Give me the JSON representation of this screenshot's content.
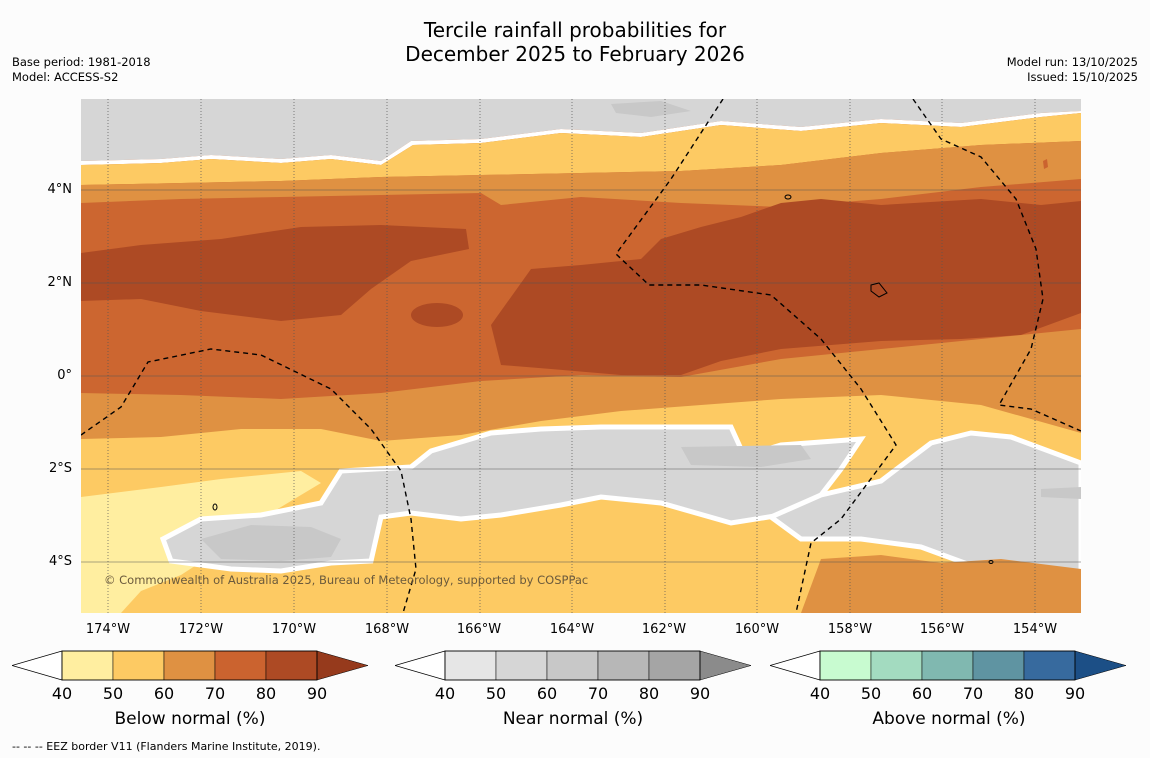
{
  "title_line1": "Tercile rainfall probabilities for",
  "title_line2": "December 2025 to February 2026",
  "base_period": "Base period: 1981-2018",
  "model": "Model: ACCESS-S2",
  "model_run": "Model run: 13/10/2025",
  "issued": "Issued: 15/10/2025",
  "copyright": "© Commonwealth of Australia 2025, Bureau of Meteorology, supported by COSPPac",
  "lat_labels": [
    "4°N",
    "2°N",
    "0°",
    "2°S",
    "4°S"
  ],
  "lon_labels": [
    "174°W",
    "172°W",
    "170°W",
    "168°W",
    "166°W",
    "164°W",
    "162°W",
    "160°W",
    "158°W",
    "156°W",
    "154°W"
  ],
  "colorbars": [
    {
      "title": "Below normal (%)",
      "ticks": [
        "40",
        "50",
        "60",
        "70",
        "80",
        "90"
      ],
      "colors": [
        "#ffeea0",
        "#fdca63",
        "#df9142",
        "#cb632f",
        "#ad4a24",
        "#963a1c"
      ]
    },
    {
      "title": "Near normal (%)",
      "ticks": [
        "40",
        "50",
        "60",
        "70",
        "80",
        "90"
      ],
      "colors": [
        "#e6e6e6",
        "#d6d6d6",
        "#c8c8c8",
        "#b7b7b7",
        "#a5a5a5",
        "#8b8b8b"
      ]
    },
    {
      "title": "Above normal (%)",
      "ticks": [
        "40",
        "50",
        "60",
        "70",
        "80",
        "90"
      ],
      "colors": [
        "#c8fbd0",
        "#a3dbc0",
        "#80b8b0",
        "#5f94a2",
        "#376a9e",
        "#1c4f86"
      ]
    }
  ],
  "footnote": "--  --  -- EEZ border V11 (Flanders Marine Institute, 2019)."
}
